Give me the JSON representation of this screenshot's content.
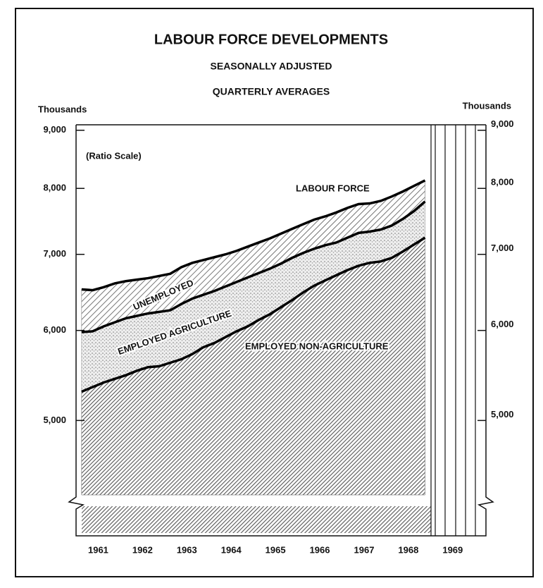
{
  "chart_data": {
    "type": "area",
    "title": "LABOUR FORCE DEVELOPMENTS",
    "subtitle": [
      "SEASONALLY ADJUSTED",
      "QUARTERLY AVERAGES"
    ],
    "y_label": "Thousands",
    "y2_label": "Thousands",
    "scale_note": "(Ratio Scale)",
    "total_label": "LABOUR FORCE",
    "log_scale": true,
    "x": [
      1961.125,
      1961.375,
      1961.625,
      1961.875,
      1962.125,
      1962.375,
      1962.625,
      1962.875,
      1963.125,
      1963.375,
      1963.625,
      1963.875,
      1964.125,
      1964.375,
      1964.625,
      1964.875,
      1965.125,
      1965.375,
      1965.625,
      1965.875,
      1966.125,
      1966.375,
      1966.625,
      1966.875,
      1967.125,
      1967.375,
      1967.625,
      1967.875,
      1968.125,
      1968.375,
      1968.625,
      1968.875
    ],
    "xlim": [
      1961,
      1970.25
    ],
    "xticks": [
      {
        "value": 1961.5,
        "label": "1961"
      },
      {
        "value": 1962.5,
        "label": "1962"
      },
      {
        "value": 1963.5,
        "label": "1963"
      },
      {
        "value": 1964.5,
        "label": "1964"
      },
      {
        "value": 1965.5,
        "label": "1965"
      },
      {
        "value": 1966.5,
        "label": "1966"
      },
      {
        "value": 1967.5,
        "label": "1967"
      },
      {
        "value": 1968.5,
        "label": "1968"
      },
      {
        "value": 1969.5,
        "label": "1969"
      }
    ],
    "ylim": [
      4300,
      9100
    ],
    "yticks": [
      {
        "value": 5000,
        "label": "5,000"
      },
      {
        "value": 6000,
        "label": "6,000"
      },
      {
        "value": 7000,
        "label": "7,000"
      },
      {
        "value": 8000,
        "label": "8,000"
      },
      {
        "value": 9000,
        "label": "9,000"
      }
    ],
    "y2lim": [
      4300,
      9100
    ],
    "y2ticks": [
      {
        "value": 5000,
        "label": "5,000"
      },
      {
        "value": 6000,
        "label": "6,000"
      },
      {
        "value": 7000,
        "label": "7,000"
      },
      {
        "value": 8000,
        "label": "8,000"
      },
      {
        "value": 9000,
        "label": "9,000"
      }
    ],
    "stacked": true,
    "series": [
      {
        "name": "EMPLOYED NON-AGRICULTURE",
        "color": "#555555",
        "values": [
          5300,
          5350,
          5400,
          5440,
          5480,
          5530,
          5570,
          5580,
          5620,
          5660,
          5720,
          5800,
          5850,
          5920,
          5990,
          6050,
          6130,
          6200,
          6290,
          6380,
          6480,
          6570,
          6640,
          6710,
          6780,
          6840,
          6880,
          6900,
          6950,
          7040,
          7140,
          7240
        ]
      },
      {
        "name": "EMPLOYED AGRICULTURE",
        "color": "#888888",
        "values": [
          680,
          640,
          650,
          660,
          670,
          650,
          640,
          650,
          630,
          670,
          680,
          650,
          650,
          640,
          630,
          630,
          610,
          600,
          580,
          570,
          540,
          510,
          490,
          460,
          460,
          470,
          450,
          460,
          470,
          480,
          500,
          550
        ]
      },
      {
        "name": "UNEMPLOYED",
        "color": "#666666",
        "values": [
          540,
          520,
          500,
          500,
          480,
          470,
          460,
          470,
          480,
          490,
          480,
          470,
          460,
          440,
          430,
          430,
          430,
          430,
          430,
          420,
          420,
          430,
          430,
          450,
          450,
          440,
          430,
          440,
          450,
          430,
          400,
          340
        ]
      }
    ]
  }
}
